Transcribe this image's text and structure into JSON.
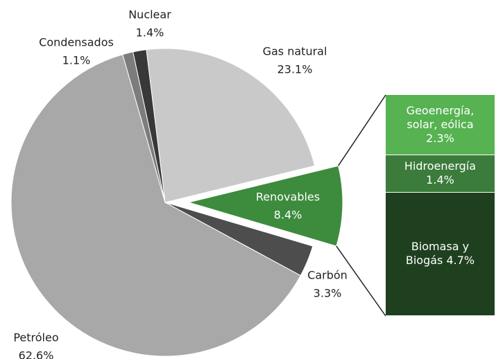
{
  "chart_data": {
    "type": "pie-of-bar",
    "categories": [
      "Gas natural",
      "Renovables",
      "Carbón",
      "Petróleo",
      "Condensados",
      "Nuclear"
    ],
    "values": [
      23.1,
      8.4,
      3.3,
      62.6,
      1.1,
      1.4
    ],
    "value_labels": [
      "23.1%",
      "8.4%",
      "3.3%",
      "62.6%",
      "1.1%",
      "1.4%"
    ],
    "colors": [
      "#c9c9c9",
      "#3d8b3d",
      "#4d4d4d",
      "#a8a8a8",
      "#7c7c7c",
      "#383838"
    ],
    "bar": {
      "categories": [
        "Geoenergía, solar, eólica",
        "Hidroenergía",
        "Biomasa y Biogás"
      ],
      "values": [
        2.3,
        1.4,
        4.7
      ],
      "value_labels": [
        "2.3%",
        "1.4%",
        "4.7%"
      ],
      "colors": [
        "#57b252",
        "#3b7b3b",
        "#1f401f"
      ]
    }
  }
}
